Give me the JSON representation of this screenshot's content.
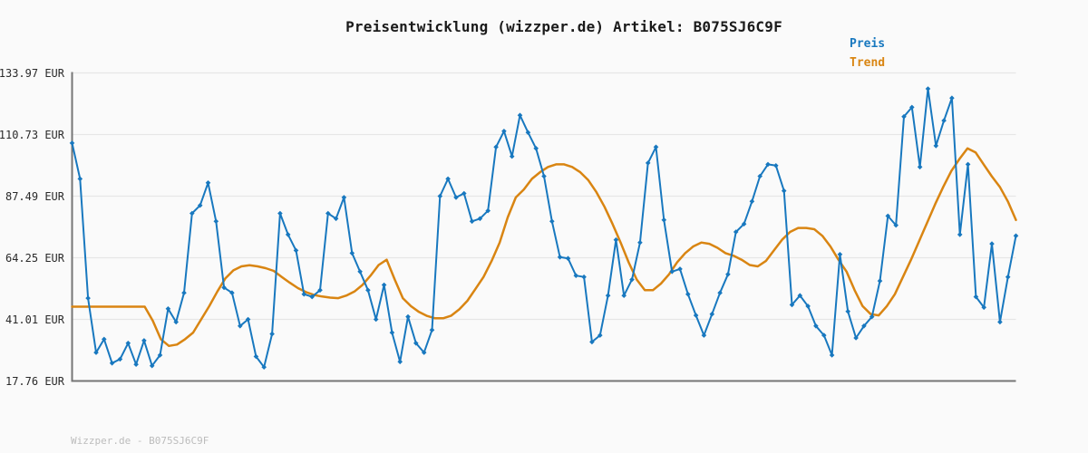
{
  "title": "Preisentwicklung (wizzper.de) Artikel: B075SJ6C9F",
  "footer": "Wizzper.de - B075SJ6C9F",
  "legend": {
    "position": "top-right",
    "items": [
      {
        "label": "Preis",
        "color": "#1878bf"
      },
      {
        "label": "Trend",
        "color": "#d98512"
      }
    ]
  },
  "colors": {
    "background": "#fafafa",
    "grid": "#e6e6e6",
    "axis": "#757575",
    "title_text": "#1a1a1a",
    "tick_text": "#2a2a2a",
    "watermark_text": "#bcbcbc",
    "price": "#1878bf",
    "trend": "#d98512"
  },
  "chart_data": {
    "type": "line",
    "title": "Preisentwicklung (wizzper.de) Artikel: B075SJ6C9F",
    "xlabel": "",
    "ylabel": "",
    "unit": "EUR",
    "ylim": [
      17.76,
      133.97
    ],
    "grid": true,
    "legend_position": "top-right",
    "x_tick_labels": [],
    "y_axis": {
      "ticks": [
        133.97,
        110.73,
        87.49,
        64.25,
        41.01,
        17.76
      ],
      "tick_labels": [
        "133.97 EUR",
        "110.73 EUR",
        "87.49 EUR",
        "64.25 EUR",
        "41.01 EUR",
        "17.76 EUR"
      ]
    },
    "series": [
      {
        "name": "Preis",
        "color": "#1878bf",
        "marker": "diamond",
        "line_width": 2,
        "values": [
          107.5,
          94,
          49,
          28.5,
          33.5,
          24.5,
          26,
          32,
          24,
          33,
          23.5,
          27.5,
          45,
          40,
          51,
          81,
          84,
          92.5,
          78,
          53,
          51,
          38.5,
          41,
          27,
          23,
          35.5,
          81,
          73,
          67,
          50.5,
          49.5,
          52,
          81,
          79,
          87,
          66,
          59,
          52,
          41,
          54,
          36,
          25,
          42,
          32,
          28.5,
          37,
          87.5,
          94,
          87,
          88.5,
          78,
          79,
          82,
          106,
          112,
          102.5,
          118,
          111.5,
          105.5,
          95,
          78,
          64.5,
          64,
          57.5,
          57,
          32.5,
          35,
          50,
          71,
          50,
          56,
          70,
          100,
          106,
          78.5,
          59,
          60,
          50.5,
          42.5,
          35,
          43,
          51,
          58,
          74,
          77,
          85.5,
          95,
          99.5,
          99,
          89.5,
          46.5,
          50,
          46,
          38.5,
          35,
          27.5,
          65.5,
          44,
          34,
          38.5,
          42,
          55.5,
          80,
          76.5,
          117.5,
          121,
          98.5,
          128,
          106.5,
          116,
          124.5,
          73,
          99.5,
          49.5,
          45.5,
          69.5,
          40,
          57,
          72.5
        ]
      },
      {
        "name": "Trend",
        "color": "#d98512",
        "marker": "none",
        "line_width": 2.5,
        "values": [
          45.8,
          45.8,
          45.8,
          45.8,
          45.8,
          45.8,
          45.8,
          45.8,
          45.8,
          45.8,
          40.5,
          33.5,
          31,
          31.5,
          33.5,
          36,
          41,
          46,
          51.5,
          56.5,
          59.5,
          61,
          61.4,
          61,
          60.3,
          59.3,
          57,
          54.8,
          52.8,
          51.3,
          50.2,
          49.6,
          49.2,
          49,
          50,
          51.5,
          54,
          57.5,
          61.5,
          63.5,
          56,
          49,
          46,
          43.8,
          42.3,
          41.4,
          41.4,
          42.4,
          44.8,
          48,
          52.5,
          57,
          63,
          70,
          79.5,
          87,
          90,
          94,
          96.5,
          98.5,
          99.5,
          99.5,
          98.5,
          96.5,
          93.5,
          89,
          83.5,
          77,
          70,
          62.5,
          56,
          52,
          52,
          54.5,
          58,
          62.5,
          66,
          68.5,
          70,
          69.5,
          68,
          66,
          65,
          63.5,
          61.5,
          61,
          63,
          67,
          71,
          74,
          75.5,
          75.5,
          75,
          72.5,
          68.5,
          63.5,
          59,
          52,
          46,
          43,
          42.5,
          46,
          50.5,
          57,
          63.5,
          70.5,
          77.5,
          84.5,
          91,
          97,
          101.5,
          105.5,
          104,
          99.5,
          95,
          91,
          85.5,
          78.5
        ]
      }
    ]
  }
}
